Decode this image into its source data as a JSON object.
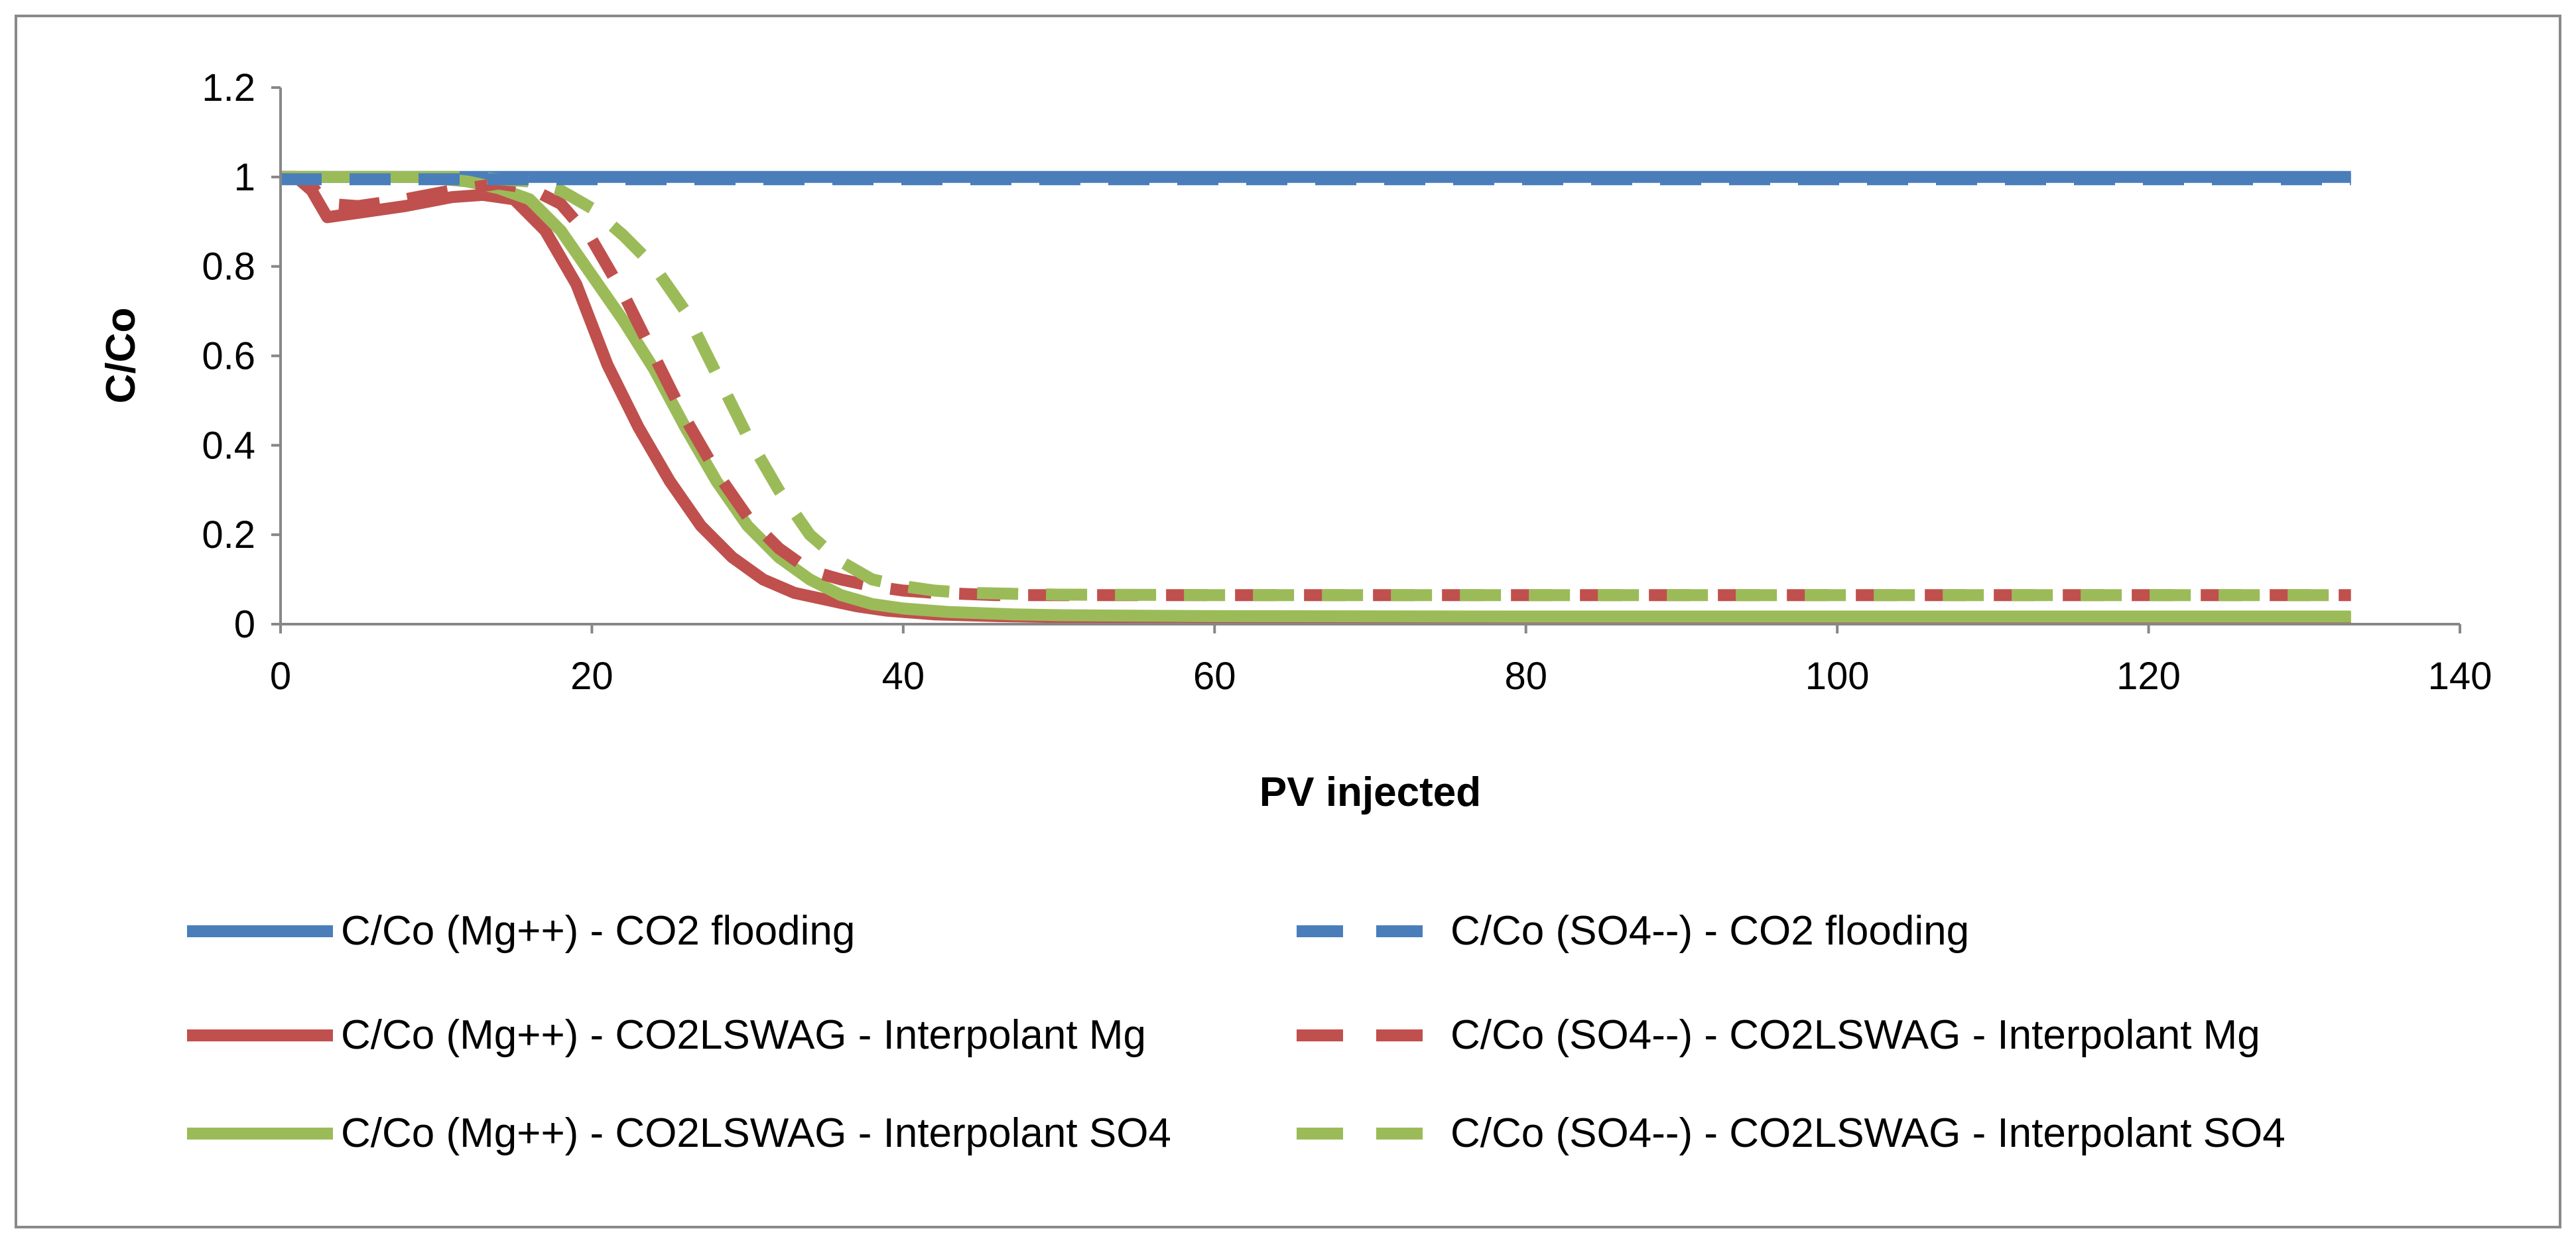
{
  "chart_data": {
    "type": "line",
    "title": "",
    "xlabel": "PV injected",
    "ylabel": "C/Co",
    "xlim": [
      0,
      140
    ],
    "ylim": [
      0,
      1.2
    ],
    "xticks": [
      "0",
      "20",
      "40",
      "60",
      "80",
      "100",
      "120",
      "140"
    ],
    "yticks": [
      "0",
      "0.2",
      "0.4",
      "0.6",
      "0.8",
      "1",
      "1.2"
    ],
    "grid": false,
    "legend_position": "bottom",
    "series": [
      {
        "name": "C/Co (Mg++) - CO2 flooding",
        "color": "#4a7ebb",
        "style": "solid",
        "x": [
          0,
          133
        ],
        "y": [
          1.0,
          1.0
        ]
      },
      {
        "name": "C/Co (SO4--) - CO2 flooding",
        "color": "#4a7ebb",
        "style": "dashed",
        "x": [
          0,
          133
        ],
        "y": [
          0.995,
          0.995
        ]
      },
      {
        "name": "C/Co (Mg++) - CO2LSWAG - Interpolant Mg",
        "color": "#c0504d",
        "style": "solid",
        "x": [
          0,
          1,
          2,
          3,
          5,
          8,
          11,
          13,
          15,
          17,
          19,
          21,
          23,
          25,
          27,
          29,
          31,
          33,
          35,
          37,
          39,
          42,
          46,
          50,
          60,
          80,
          100,
          133
        ],
        "y": [
          1.0,
          1.0,
          0.97,
          0.91,
          0.92,
          0.935,
          0.955,
          0.96,
          0.95,
          0.88,
          0.76,
          0.58,
          0.44,
          0.32,
          0.22,
          0.15,
          0.1,
          0.07,
          0.055,
          0.04,
          0.03,
          0.022,
          0.018,
          0.016,
          0.015,
          0.015,
          0.015,
          0.015
        ]
      },
      {
        "name": "C/Co (SO4--) - CO2LSWAG - Interpolant Mg",
        "color": "#c0504d",
        "style": "dashed",
        "x": [
          0,
          1,
          2,
          3,
          5,
          8,
          11,
          14,
          16,
          18,
          20,
          22,
          24,
          26,
          28,
          30,
          32,
          34,
          36,
          38,
          40,
          42,
          46,
          60,
          80,
          100,
          133
        ],
        "y": [
          1.0,
          1.0,
          0.98,
          0.94,
          0.935,
          0.95,
          0.97,
          0.985,
          0.975,
          0.94,
          0.86,
          0.74,
          0.6,
          0.46,
          0.34,
          0.24,
          0.17,
          0.12,
          0.1,
          0.085,
          0.075,
          0.07,
          0.065,
          0.065,
          0.065,
          0.065,
          0.065
        ]
      },
      {
        "name": " C/Co (Mg++) - CO2LSWAG - Interpolant SO4",
        "color": "#9bbb59",
        "style": "solid",
        "x": [
          0,
          3,
          6,
          9,
          12,
          14,
          16,
          18,
          20,
          22,
          24,
          26,
          28,
          30,
          32,
          34,
          36,
          38,
          40,
          43,
          47,
          50,
          60,
          80,
          100,
          133
        ],
        "y": [
          1.0,
          1.0,
          1.0,
          1.0,
          0.99,
          0.975,
          0.95,
          0.88,
          0.78,
          0.68,
          0.57,
          0.44,
          0.32,
          0.22,
          0.15,
          0.1,
          0.065,
          0.045,
          0.035,
          0.027,
          0.022,
          0.02,
          0.018,
          0.017,
          0.017,
          0.017
        ]
      },
      {
        "name": "C/Co (SO4--) - CO2LSWAG - Interpolant SO4",
        "color": "#9bbb59",
        "style": "dashed",
        "x": [
          0,
          4,
          8,
          12,
          16,
          18,
          20,
          22,
          24,
          26,
          28,
          30,
          32,
          34,
          36,
          38,
          40,
          42,
          44,
          47,
          50,
          60,
          80,
          100,
          133
        ],
        "y": [
          1.0,
          1.0,
          1.0,
          1.0,
          0.99,
          0.97,
          0.93,
          0.87,
          0.8,
          0.7,
          0.56,
          0.42,
          0.3,
          0.2,
          0.14,
          0.1,
          0.085,
          0.075,
          0.07,
          0.068,
          0.066,
          0.065,
          0.065,
          0.065,
          0.065
        ]
      }
    ]
  }
}
